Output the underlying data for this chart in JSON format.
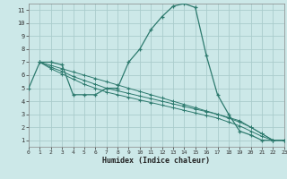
{
  "xlabel": "Humidex (Indice chaleur)",
  "bg_color": "#cce8e8",
  "grid_color": "#aacccc",
  "line_color": "#2d7a6e",
  "xlim": [
    0,
    23
  ],
  "ylim": [
    0.5,
    11.5
  ],
  "xticks": [
    0,
    1,
    2,
    3,
    4,
    5,
    6,
    7,
    8,
    9,
    10,
    11,
    12,
    13,
    14,
    15,
    16,
    17,
    18,
    19,
    20,
    21,
    22,
    23
  ],
  "yticks": [
    1,
    2,
    3,
    4,
    5,
    6,
    7,
    8,
    9,
    10,
    11
  ],
  "main_curve": {
    "x": [
      0,
      1,
      2,
      3,
      4,
      5,
      6,
      7,
      8,
      9,
      10,
      11,
      12,
      13,
      14,
      15,
      16,
      17,
      18,
      19,
      20,
      21,
      22,
      23
    ],
    "y": [
      5,
      7,
      7,
      6.8,
      4.5,
      4.5,
      4.5,
      5,
      5,
      7,
      8,
      9.5,
      10.5,
      11.3,
      11.5,
      11.2,
      7.5,
      4.5,
      3,
      1.7,
      1.4,
      1,
      1,
      1
    ]
  },
  "trend1": {
    "x": [
      1,
      2,
      3,
      4,
      5,
      6,
      7,
      8,
      9,
      10,
      11,
      12,
      13,
      14,
      15,
      16,
      17,
      18,
      19,
      20,
      21,
      22,
      23
    ],
    "y": [
      7,
      6.75,
      6.5,
      6.25,
      6.0,
      5.75,
      5.5,
      5.25,
      5.0,
      4.75,
      4.5,
      4.25,
      4.0,
      3.75,
      3.5,
      3.25,
      3.0,
      2.75,
      2.5,
      2.0,
      1.5,
      1.0,
      1.0
    ]
  },
  "trend2": {
    "x": [
      1,
      2,
      3,
      4,
      5,
      6,
      7,
      8,
      9,
      10,
      11,
      12,
      13,
      14,
      15,
      16,
      17,
      18,
      19,
      20,
      21,
      22,
      23
    ],
    "y": [
      7,
      6.6,
      6.3,
      5.9,
      5.6,
      5.3,
      5.0,
      4.8,
      4.6,
      4.4,
      4.2,
      4.0,
      3.8,
      3.6,
      3.4,
      3.2,
      3.0,
      2.7,
      2.4,
      2.0,
      1.5,
      1.0,
      1.0
    ]
  },
  "trend3": {
    "x": [
      1,
      2,
      3,
      4,
      5,
      6,
      7,
      8,
      9,
      10,
      11,
      12,
      13,
      14,
      15,
      16,
      17,
      18,
      19,
      20,
      21,
      22,
      23
    ],
    "y": [
      7,
      6.5,
      6.1,
      5.7,
      5.3,
      5.0,
      4.7,
      4.5,
      4.3,
      4.1,
      3.9,
      3.7,
      3.5,
      3.3,
      3.1,
      2.9,
      2.7,
      2.4,
      2.1,
      1.7,
      1.3,
      1.0,
      1.0
    ]
  }
}
